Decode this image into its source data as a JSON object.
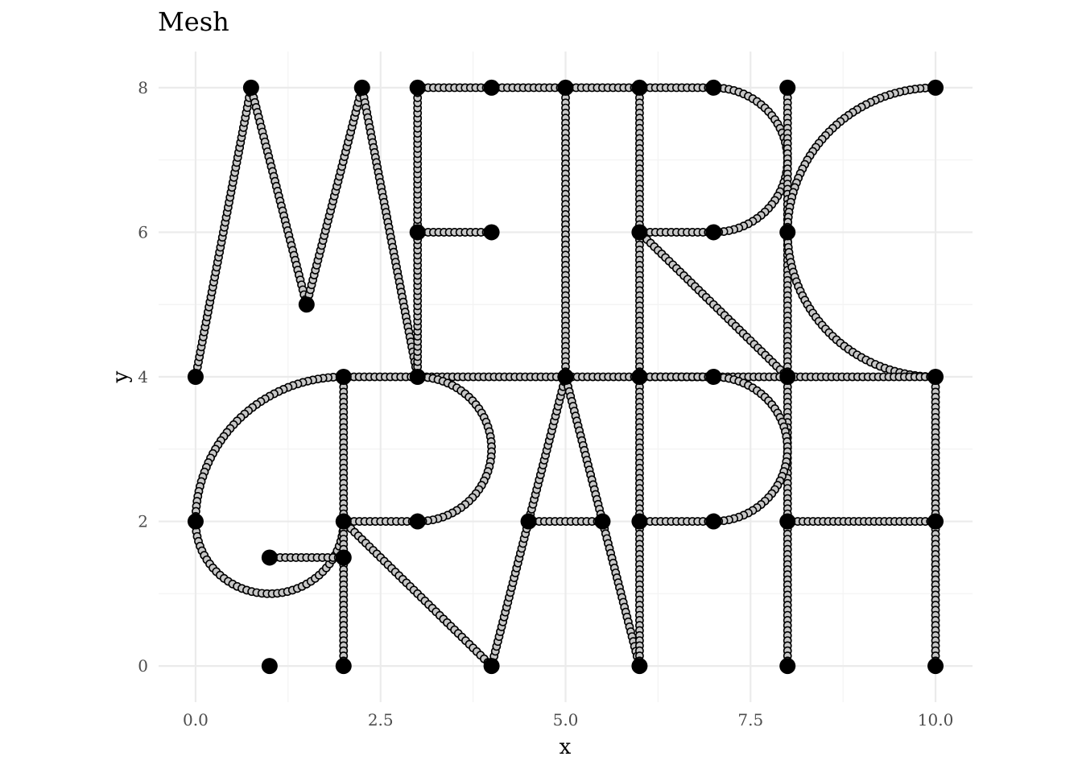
{
  "chart_data": {
    "type": "scatter",
    "title": "Mesh",
    "xlabel": "x",
    "ylabel": "y",
    "xlim": [
      -0.5,
      10.5
    ],
    "ylim": [
      -0.5,
      8.5
    ],
    "x_ticks": [
      0,
      2.5,
      5,
      7.5,
      10
    ],
    "x_tick_labels": [
      "0.0",
      "2.5",
      "5.0",
      "7.5",
      "10.0"
    ],
    "y_ticks": [
      0,
      2,
      4,
      6,
      8
    ],
    "y_tick_labels": [
      "0",
      "2",
      "4",
      "6",
      "8"
    ],
    "grid": true,
    "mesh_spacing": 0.07,
    "vertex_color": "#000000",
    "mesh_point_fill": "#c8c8c8",
    "edge_color": "#000000",
    "vertices": [
      [
        0,
        4
      ],
      [
        0.75,
        8
      ],
      [
        1.5,
        5
      ],
      [
        2.25,
        8
      ],
      [
        3,
        4
      ],
      [
        3,
        8
      ],
      [
        4,
        8
      ],
      [
        3,
        6
      ],
      [
        4,
        6
      ],
      [
        5,
        8
      ],
      [
        5,
        4
      ],
      [
        6,
        8
      ],
      [
        6,
        4
      ],
      [
        7,
        8
      ],
      [
        6,
        6
      ],
      [
        7,
        6
      ],
      [
        8,
        4
      ],
      [
        8,
        8
      ],
      [
        8,
        0
      ],
      [
        8,
        6
      ],
      [
        10,
        8
      ],
      [
        10,
        4
      ],
      [
        10,
        0
      ],
      [
        2,
        4
      ],
      [
        0,
        2
      ],
      [
        1,
        0
      ],
      [
        1,
        1.5
      ],
      [
        2,
        1.5
      ],
      [
        2,
        2
      ],
      [
        2,
        0
      ],
      [
        3,
        2
      ],
      [
        4,
        0
      ],
      [
        6,
        0
      ],
      [
        4.5,
        2
      ],
      [
        5.5,
        2
      ],
      [
        7,
        4
      ],
      [
        6,
        2
      ],
      [
        7,
        2
      ],
      [
        8,
        2
      ],
      [
        10,
        2
      ]
    ],
    "edges": [
      {
        "type": "line",
        "from": [
          0,
          4
        ],
        "to": [
          0.75,
          8
        ]
      },
      {
        "type": "line",
        "from": [
          0.75,
          8
        ],
        "to": [
          1.5,
          5
        ]
      },
      {
        "type": "line",
        "from": [
          1.5,
          5
        ],
        "to": [
          2.25,
          8
        ]
      },
      {
        "type": "line",
        "from": [
          2.25,
          8
        ],
        "to": [
          3,
          4
        ]
      },
      {
        "type": "line",
        "from": [
          3,
          4
        ],
        "to": [
          3,
          8
        ]
      },
      {
        "type": "line",
        "from": [
          3,
          8
        ],
        "to": [
          4,
          8
        ]
      },
      {
        "type": "line",
        "from": [
          3,
          6
        ],
        "to": [
          4,
          6
        ]
      },
      {
        "type": "line",
        "from": [
          4,
          8
        ],
        "to": [
          5,
          8
        ]
      },
      {
        "type": "line",
        "from": [
          5,
          8
        ],
        "to": [
          5,
          4
        ]
      },
      {
        "type": "line",
        "from": [
          5,
          8
        ],
        "to": [
          6,
          8
        ]
      },
      {
        "type": "line",
        "from": [
          6,
          8
        ],
        "to": [
          6,
          4
        ]
      },
      {
        "type": "line",
        "from": [
          6,
          8
        ],
        "to": [
          7,
          8
        ]
      },
      {
        "type": "arc",
        "center": [
          7,
          7
        ],
        "r": 1,
        "a0": 90,
        "a1": -90
      },
      {
        "type": "line",
        "from": [
          6,
          6
        ],
        "to": [
          7,
          6
        ]
      },
      {
        "type": "line",
        "from": [
          6,
          6
        ],
        "to": [
          8,
          4
        ]
      },
      {
        "type": "line",
        "from": [
          8,
          8
        ],
        "to": [
          8,
          4
        ]
      },
      {
        "type": "arc",
        "center": [
          10,
          6
        ],
        "r": 2,
        "a0": 90,
        "a1": 270
      },
      {
        "type": "line",
        "from": [
          10,
          4
        ],
        "to": [
          10,
          0
        ]
      },
      {
        "type": "line",
        "from": [
          8,
          4
        ],
        "to": [
          8,
          0
        ]
      },
      {
        "type": "line",
        "from": [
          8,
          2
        ],
        "to": [
          10,
          2
        ]
      },
      {
        "type": "line",
        "from": [
          2,
          4
        ],
        "to": [
          10,
          4
        ]
      },
      {
        "type": "arc",
        "center": [
          2,
          2
        ],
        "r": 2,
        "a0": 90,
        "a1": 180
      },
      {
        "type": "arc",
        "center": [
          1,
          2
        ],
        "r": 1,
        "a0": 180,
        "a1": 360
      },
      {
        "type": "line",
        "from": [
          1,
          1.5
        ],
        "to": [
          2,
          1.5
        ]
      },
      {
        "type": "line",
        "from": [
          2,
          4
        ],
        "to": [
          2,
          0
        ]
      },
      {
        "type": "line",
        "from": [
          2,
          2
        ],
        "to": [
          3,
          2
        ]
      },
      {
        "type": "arc",
        "center": [
          3,
          3
        ],
        "r": 1,
        "a0": 90,
        "a1": -90
      },
      {
        "type": "line",
        "from": [
          2,
          2
        ],
        "to": [
          4,
          0
        ]
      },
      {
        "type": "line",
        "from": [
          4,
          0
        ],
        "to": [
          5,
          4
        ]
      },
      {
        "type": "line",
        "from": [
          5,
          4
        ],
        "to": [
          6,
          0
        ]
      },
      {
        "type": "line",
        "from": [
          4.5,
          2
        ],
        "to": [
          5.5,
          2
        ]
      },
      {
        "type": "line",
        "from": [
          6,
          4
        ],
        "to": [
          6,
          0
        ]
      },
      {
        "type": "line",
        "from": [
          6,
          4
        ],
        "to": [
          7,
          4
        ]
      },
      {
        "type": "arc",
        "center": [
          7,
          3
        ],
        "r": 1,
        "a0": 90,
        "a1": -90
      },
      {
        "type": "line",
        "from": [
          6,
          2
        ],
        "to": [
          7,
          2
        ]
      }
    ]
  }
}
